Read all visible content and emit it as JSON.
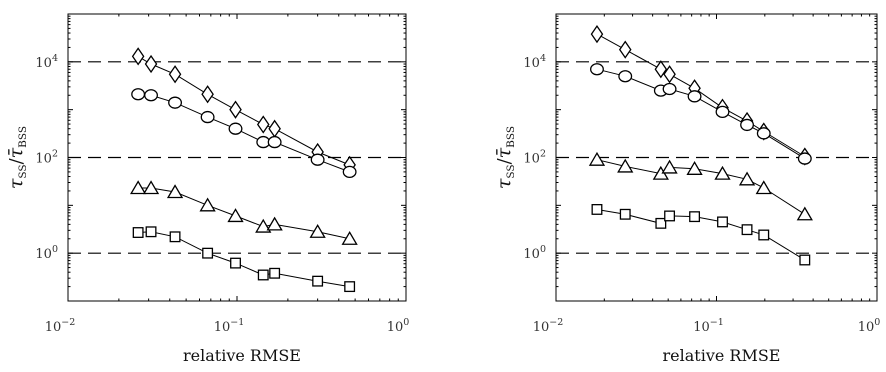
{
  "chart_data": [
    {
      "type": "scatter",
      "xscale": "log",
      "yscale": "log",
      "xlim": [
        0.01,
        1
      ],
      "ylim": [
        0.1,
        100000
      ],
      "xticks": [
        {
          "value": 0.01,
          "base": "10",
          "exp": "−2"
        },
        {
          "value": 0.1,
          "base": "10",
          "exp": "−1"
        },
        {
          "value": 1,
          "base": "10",
          "exp": "0"
        }
      ],
      "yticks": [
        {
          "value": 1,
          "base": "10",
          "exp": "0"
        },
        {
          "value": 100,
          "base": "10",
          "exp": "2"
        },
        {
          "value": 10000,
          "base": "10",
          "exp": "4"
        }
      ],
      "reference_lines": [
        1,
        100,
        10000
      ],
      "xlabel": "relative RMSE",
      "ylabel": {
        "tau": "τ",
        "ss": "SS",
        "slash": "/",
        "taubar": "τ̄",
        "bss": "BSS"
      },
      "series": [
        {
          "marker": "diamond",
          "x": [
            0.026,
            0.031,
            0.043,
            0.067,
            0.098,
            0.143,
            0.167,
            0.3,
            0.464
          ],
          "y": [
            13000,
            9000,
            5500,
            2100,
            1000,
            490,
            400,
            130,
            70
          ]
        },
        {
          "marker": "circle",
          "x": [
            0.026,
            0.031,
            0.043,
            0.067,
            0.098,
            0.143,
            0.167,
            0.3,
            0.464
          ],
          "y": [
            2100,
            2000,
            1400,
            700,
            400,
            210,
            210,
            90,
            50
          ]
        },
        {
          "marker": "triangle",
          "x": [
            0.026,
            0.031,
            0.043,
            0.067,
            0.098,
            0.143,
            0.167,
            0.3,
            0.464
          ],
          "y": [
            23,
            23,
            19,
            10,
            6,
            3.6,
            4,
            2.8,
            2
          ]
        },
        {
          "marker": "square",
          "x": [
            0.026,
            0.031,
            0.043,
            0.067,
            0.098,
            0.143,
            0.167,
            0.3,
            0.464
          ],
          "y": [
            2.7,
            2.8,
            2.2,
            1.0,
            0.62,
            0.35,
            0.38,
            0.26,
            0.2
          ]
        }
      ]
    },
    {
      "type": "scatter",
      "xscale": "log",
      "yscale": "log",
      "xlim": [
        0.01,
        1
      ],
      "ylim": [
        0.1,
        100000
      ],
      "xticks": [
        {
          "value": 0.01,
          "base": "10",
          "exp": "−2"
        },
        {
          "value": 0.1,
          "base": "10",
          "exp": "−1"
        },
        {
          "value": 1,
          "base": "10",
          "exp": "0"
        }
      ],
      "yticks": [
        {
          "value": 1,
          "base": "10",
          "exp": "0"
        },
        {
          "value": 100,
          "base": "10",
          "exp": "2"
        },
        {
          "value": 10000,
          "base": "10",
          "exp": "4"
        }
      ],
      "reference_lines": [
        1,
        100,
        10000
      ],
      "xlabel": "relative RMSE",
      "ylabel": {
        "tau": "τ",
        "ss": "SS",
        "slash": "/",
        "taubar": "τ̄",
        "bss": "BSS"
      },
      "series": [
        {
          "marker": "diamond",
          "x": [
            0.018,
            0.027,
            0.045,
            0.051,
            0.073,
            0.109,
            0.155,
            0.197,
            0.355
          ],
          "y": [
            38000,
            18000,
            7000,
            5500,
            2800,
            1100,
            580,
            350,
            105
          ]
        },
        {
          "marker": "circle",
          "x": [
            0.018,
            0.027,
            0.045,
            0.051,
            0.073,
            0.109,
            0.155,
            0.197,
            0.355
          ],
          "y": [
            7000,
            5000,
            2500,
            2700,
            1900,
            900,
            480,
            320,
            95
          ]
        },
        {
          "marker": "triangle",
          "x": [
            0.018,
            0.027,
            0.045,
            0.051,
            0.073,
            0.109,
            0.155,
            0.197,
            0.355
          ],
          "y": [
            90,
            65,
            46,
            62,
            58,
            46,
            35,
            23,
            6.5
          ]
        },
        {
          "marker": "square",
          "x": [
            0.018,
            0.027,
            0.045,
            0.051,
            0.073,
            0.109,
            0.155,
            0.197,
            0.355
          ],
          "y": [
            8.2,
            6.5,
            4.2,
            6.0,
            5.8,
            4.5,
            3.1,
            2.4,
            0.72
          ]
        }
      ]
    }
  ]
}
